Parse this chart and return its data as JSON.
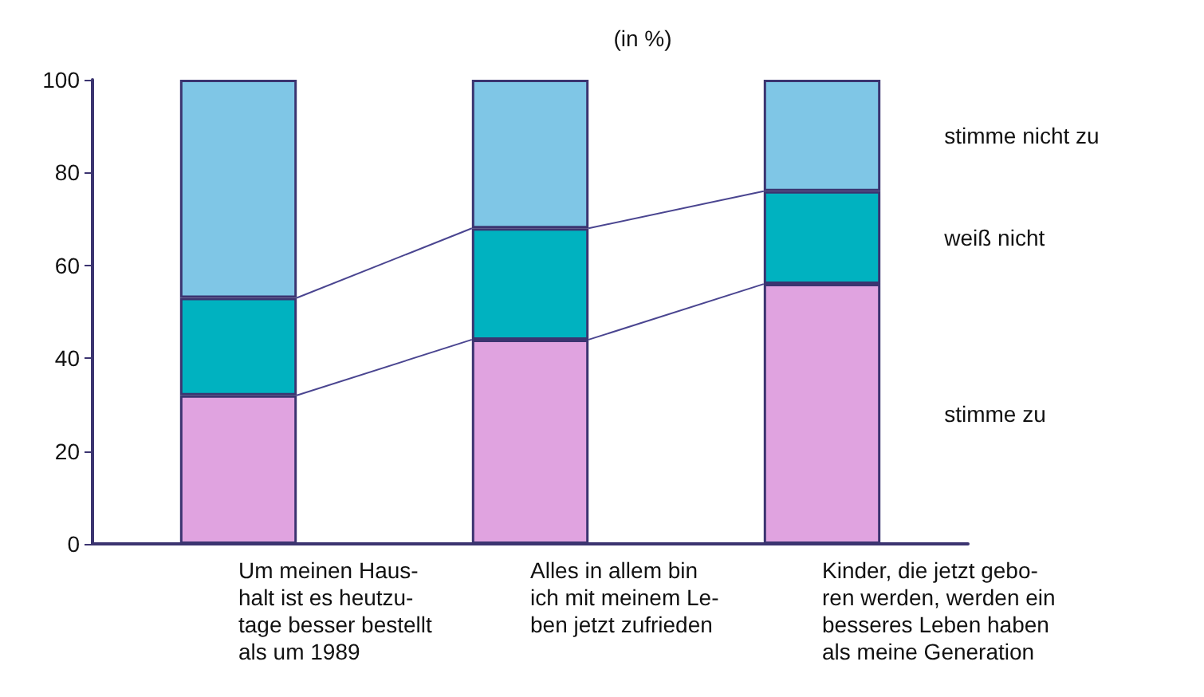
{
  "chart_data": {
    "type": "bar",
    "stacked": true,
    "title": "(in %)",
    "categories": [
      "Um meinen Haus-\nhalt ist es heutzu-\ntage besser bestellt\nals um 1989",
      "Alles in allem bin\nich mit meinem Le-\nben jetzt zufrieden",
      "Kinder, die jetzt gebo-\nren werden, werden ein\nbesseres Leben haben\nals meine Generation"
    ],
    "series": [
      {
        "name": "stimme zu",
        "color": "#e0a3e0",
        "values": [
          32,
          44,
          56
        ]
      },
      {
        "name": "weiß nicht",
        "color": "#00b2c0",
        "values": [
          21,
          24,
          20
        ]
      },
      {
        "name": "stimme nicht zu",
        "color": "#7fc6e6",
        "values": [
          47,
          32,
          24
        ]
      }
    ],
    "ylim": [
      0,
      100
    ],
    "yticks": [
      0,
      20,
      40,
      60,
      80,
      100
    ],
    "grid": false,
    "legend": false
  }
}
